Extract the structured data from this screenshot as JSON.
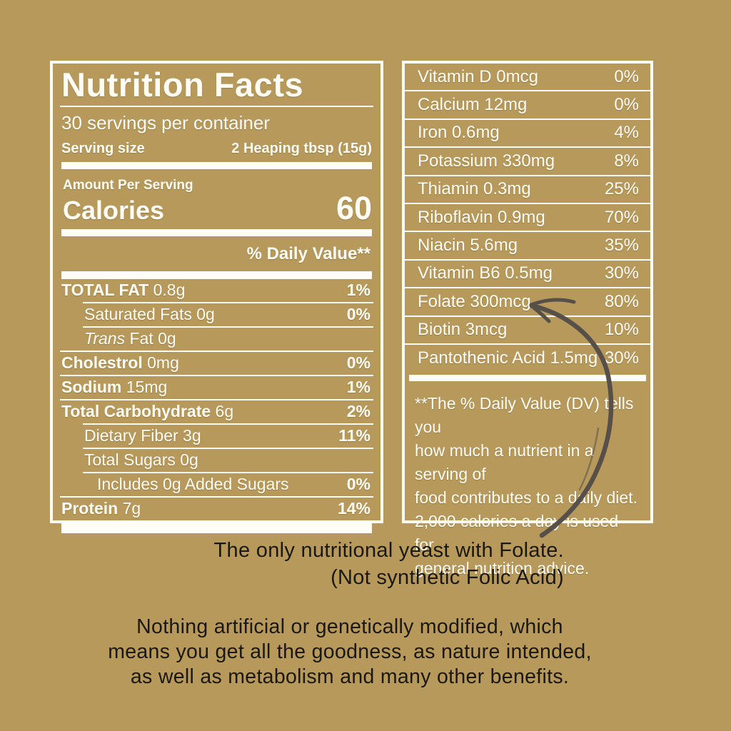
{
  "colors": {
    "background": "#b6995b",
    "label": "#fffdf5",
    "dark_text": "#1b1812",
    "arrow": "#57504a"
  },
  "nutrition_panel": {
    "title": "Nutrition Facts",
    "servings": "30 servings per container",
    "serving_size_label": "Serving size",
    "serving_size_value": "2 Heaping tbsp (15g)",
    "amount_per_serving": "Amount Per Serving",
    "calories_label": "Calories",
    "calories_value": "60",
    "daily_value_header": "% Daily Value**",
    "rows": [
      {
        "bold": "TOTAL FAT",
        "rest": " 0.8g",
        "dv": "1%",
        "indent": 0
      },
      {
        "rest": "Saturated Fats 0g",
        "dv": "0%",
        "indent": 1
      },
      {
        "italic": "Trans",
        "rest": " Fat 0g",
        "dv": "",
        "indent": 1
      },
      {
        "bold": "Cholestrol",
        "rest": " 0mg",
        "dv": "0%",
        "indent": 0
      },
      {
        "bold": "Sodium",
        "rest": " 15mg",
        "dv": "1%",
        "indent": 0
      },
      {
        "bold": "Total Carbohydrate",
        "rest": " 6g",
        "dv": "2%",
        "indent": 0
      },
      {
        "rest": "Dietary Fiber 3g",
        "dv": "11%",
        "indent": 1
      },
      {
        "rest": "Total Sugars 0g",
        "dv": "",
        "indent": 1
      },
      {
        "rest": "Includes 0g Added Sugars",
        "dv": "0%",
        "indent": 2
      },
      {
        "bold": "Protein",
        "rest": " 7g",
        "dv": "14%",
        "indent": 0
      }
    ]
  },
  "vitamins_panel": {
    "rows": [
      {
        "label": "Vitamin D 0mcg",
        "dv": "0%"
      },
      {
        "label": "Calcium 12mg",
        "dv": "0%"
      },
      {
        "label": "Iron 0.6mg",
        "dv": "4%"
      },
      {
        "label": "Potassium 330mg",
        "dv": "8%"
      },
      {
        "label": "Thiamin 0.3mg",
        "dv": "25%"
      },
      {
        "label": "Riboflavin 0.9mg",
        "dv": "70%"
      },
      {
        "label": "Niacin 5.6mg",
        "dv": "35%"
      },
      {
        "label": "Vitamin B6 0.5mg",
        "dv": "30%"
      },
      {
        "label": "Folate 300mcg",
        "dv": "80%"
      },
      {
        "label": "Biotin 3mcg",
        "dv": "10%"
      },
      {
        "label": "Pantothenic Acid 1.5mg",
        "dv": "30%"
      }
    ],
    "footnote_lines": [
      "**The % Daily Value (DV) tells you",
      "how much a nutrient in a serving of",
      "food contributes to a daily diet.",
      "2,000 calories a day is used for",
      "general nutrition advice."
    ]
  },
  "caption_lines": [
    "The only nutritional yeast with Folate.",
    "(Not synthetic Folic Acid)"
  ],
  "body_lines": [
    "Nothing artificial or genetically modified, which",
    "means you get all the goodness, as nature intended,",
    "as well as metabolism and many other benefits."
  ]
}
